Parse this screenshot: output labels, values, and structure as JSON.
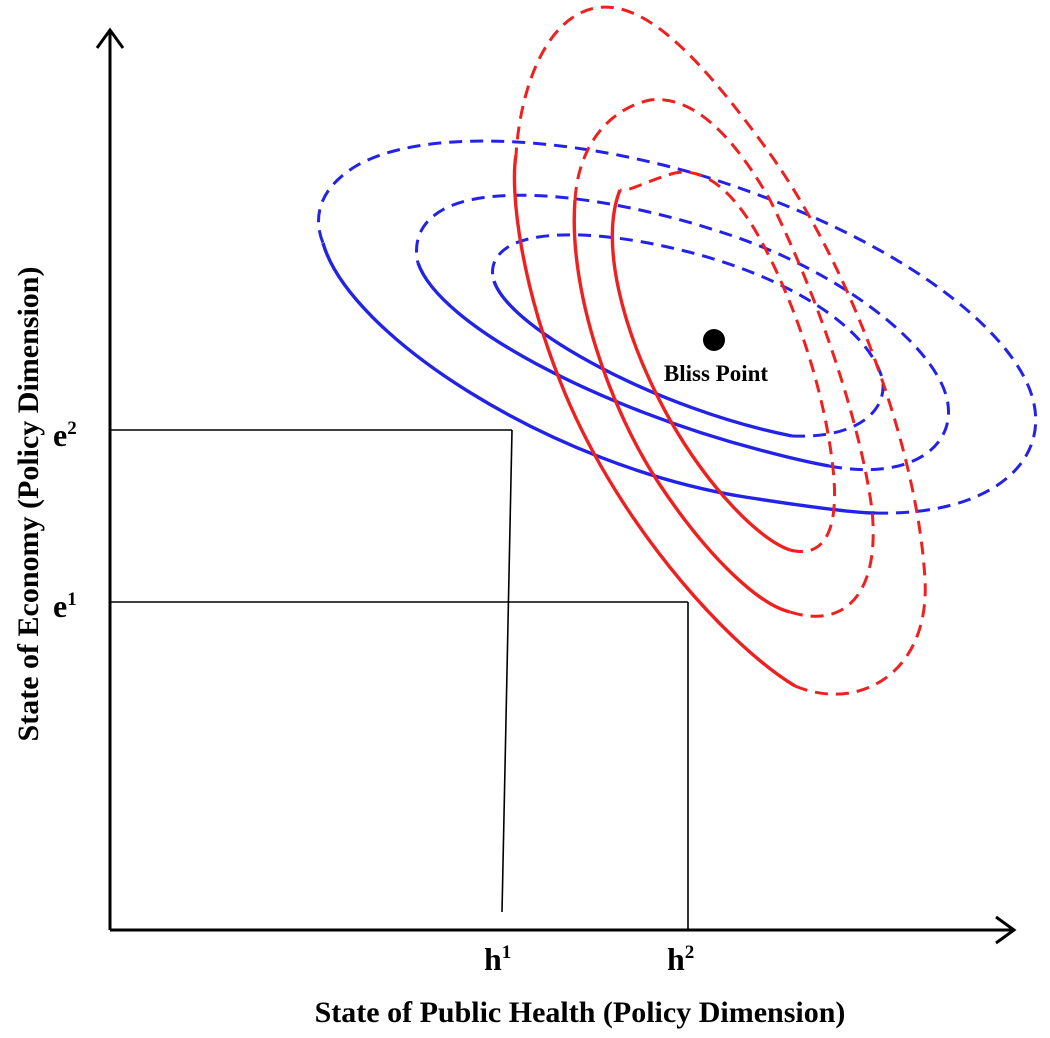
{
  "axes": {
    "x_label": "State of Public Health (Policy Dimension)",
    "y_label": "State of Economy (Policy Dimension)"
  },
  "ticks": {
    "h1": {
      "base": "h",
      "sup": "1"
    },
    "h2": {
      "base": "h",
      "sup": "2"
    },
    "e1": {
      "base": "e",
      "sup": "1"
    },
    "e2": {
      "base": "e",
      "sup": "2"
    }
  },
  "bliss_point": {
    "label": "Bliss Point"
  },
  "colors": {
    "economy_curves": "#2323e8",
    "health_curves": "#ee2020",
    "axes": "#000000"
  }
}
